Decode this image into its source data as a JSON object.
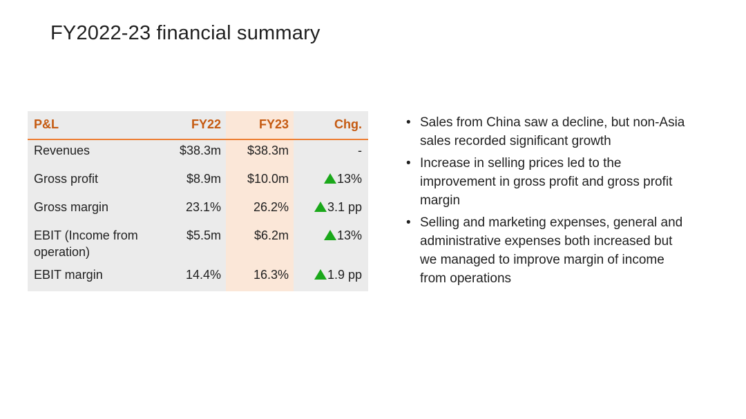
{
  "title": "FY2022-23 financial summary",
  "table": {
    "headers": [
      "P&L",
      "FY22",
      "FY23",
      "Chg."
    ],
    "rows": [
      {
        "label": "Revenues",
        "fy22": "$38.3m",
        "fy23": "$38.3m",
        "chg": "-",
        "up": false
      },
      {
        "label": "Gross profit",
        "fy22": "$8.9m",
        "fy23": "$10.0m",
        "chg": "13%",
        "up": true
      },
      {
        "label": "Gross margin",
        "fy22": "23.1%",
        "fy23": "26.2%",
        "chg": "3.1 pp",
        "up": true
      },
      {
        "label": "EBIT (Income from operation)",
        "fy22": "$5.5m",
        "fy23": "$6.2m",
        "chg": "13%",
        "up": true
      },
      {
        "label": "EBIT margin",
        "fy22": "14.4%",
        "fy23": "16.3%",
        "chg": "1.9 pp",
        "up": true
      }
    ]
  },
  "bullets": [
    "Sales from China saw a decline, but non-Asia sales recorded significant growth",
    "Increase in selling prices led to the improvement in gross profit and gross profit margin",
    "Selling and marketing expenses, general and administrative expenses both increased but we managed to improve margin of income from operations"
  ],
  "colors": {
    "header_text": "#c55a11",
    "header_rule": "#ed7d31",
    "fy23_band": "#fbe7d8",
    "up_arrow": "#1aa81a",
    "table_bg": "#ebebeb"
  },
  "icons": {
    "up": "triangle-up-icon",
    "bullet": "•"
  }
}
